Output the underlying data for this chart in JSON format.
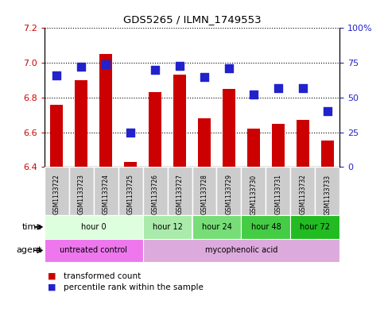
{
  "title": "GDS5265 / ILMN_1749553",
  "samples": [
    "GSM1133722",
    "GSM1133723",
    "GSM1133724",
    "GSM1133725",
    "GSM1133726",
    "GSM1133727",
    "GSM1133728",
    "GSM1133729",
    "GSM1133730",
    "GSM1133731",
    "GSM1133732",
    "GSM1133733"
  ],
  "transformed_count": [
    6.76,
    6.9,
    7.05,
    6.43,
    6.83,
    6.93,
    6.68,
    6.85,
    6.62,
    6.65,
    6.67,
    6.55
  ],
  "percentile_rank": [
    66,
    72,
    74,
    25,
    70,
    73,
    65,
    71,
    52,
    57,
    57,
    40
  ],
  "ylim_left": [
    6.4,
    7.2
  ],
  "ylim_right": [
    0,
    100
  ],
  "yticks_left": [
    6.4,
    6.6,
    6.8,
    7.0,
    7.2
  ],
  "yticks_right": [
    0,
    25,
    50,
    75,
    100
  ],
  "ytick_labels_right": [
    "0",
    "25",
    "50",
    "75",
    "100%"
  ],
  "baseline": 6.4,
  "bar_color": "#cc0000",
  "dot_color": "#2222cc",
  "time_groups": [
    {
      "label": "hour 0",
      "start": 0,
      "end": 4,
      "color": "#ddffdd"
    },
    {
      "label": "hour 12",
      "start": 4,
      "end": 6,
      "color": "#aaeaaa"
    },
    {
      "label": "hour 24",
      "start": 6,
      "end": 8,
      "color": "#77dd77"
    },
    {
      "label": "hour 48",
      "start": 8,
      "end": 10,
      "color": "#44cc44"
    },
    {
      "label": "hour 72",
      "start": 10,
      "end": 12,
      "color": "#22bb22"
    }
  ],
  "agent_groups": [
    {
      "label": "untreated control",
      "start": 0,
      "end": 4,
      "color": "#ee77ee"
    },
    {
      "label": "mycophenolic acid",
      "start": 4,
      "end": 12,
      "color": "#ddaadd"
    }
  ],
  "bar_color_alt": "#cc0000",
  "dot_color_alt": "#2222cc",
  "grid_color": "#000000",
  "tick_label_color_left": "#cc0000",
  "tick_label_color_right": "#2222cc",
  "bar_width": 0.5,
  "dot_size": 55,
  "time_label": "time",
  "agent_label": "agent",
  "legend_items": [
    "transformed count",
    "percentile rank within the sample"
  ],
  "sample_box_color": "#cccccc"
}
